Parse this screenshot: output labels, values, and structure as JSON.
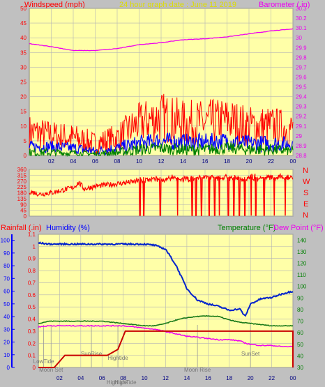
{
  "header": {
    "left_title": "Windspeed (mph)",
    "center_title": "24 hour graph date : June 11 2019",
    "right_title": "Barometer (.in)"
  },
  "colors": {
    "plot_bg": "#ffffa8",
    "frame_bg": "#c0c0c0",
    "grid": "#b4b4b4",
    "wind_gust": "#ff0000",
    "wind_avg": "#0000ff",
    "wind_low": "#008000",
    "barometer": "#ee00ee",
    "direction": "#ff0000",
    "humidity": "#0022cc",
    "temperature": "#1a7a1a",
    "dew_point": "#ee00ee",
    "rainfall": "#c80000",
    "title_yellow": "#dddd00",
    "left_red": "#ff0000",
    "left_blue": "#0000ff",
    "right_green": "#008000",
    "events": "#777777"
  },
  "direction_labels": [
    "N",
    "W",
    "S",
    "E",
    "N"
  ],
  "chart_data": [
    {
      "type": "line",
      "title": "24 hour graph date : June 11 2019",
      "x_ticks": [
        "02",
        "04",
        "06",
        "08",
        "10",
        "12",
        "14",
        "16",
        "18",
        "20",
        "22",
        "00"
      ],
      "ylabel": "Windspeed (mph)",
      "ylim": [
        0,
        50
      ],
      "y_ticks": [
        0,
        5,
        10,
        15,
        20,
        25,
        30,
        35,
        40,
        45,
        50
      ],
      "y2label": "Barometer (.in)",
      "y2lim": [
        28.8,
        30.3
      ],
      "y2_ticks": [
        "28.8",
        "28.9",
        "29",
        "29.1",
        "29.2",
        "29.3",
        "29.4",
        "29.5",
        "29.6",
        "29.7",
        "29.8",
        "29.9",
        "30",
        "30.1",
        "30.2",
        "30.3"
      ],
      "x": [
        0,
        2,
        4,
        6,
        8,
        10,
        12,
        14,
        16,
        18,
        20,
        22,
        24
      ],
      "series": [
        {
          "name": "Windspeed",
          "axis": "left",
          "style": "noisy",
          "values": [
            8,
            7,
            6,
            4,
            6,
            11,
            13,
            11,
            11,
            12,
            10,
            10,
            9
          ],
          "spread": [
            6,
            5,
            5,
            4,
            5,
            7,
            9,
            8,
            8,
            8,
            7,
            7,
            6
          ]
        },
        {
          "name": "Average",
          "axis": "left",
          "style": "noisy",
          "values": [
            3,
            3,
            2.5,
            1.5,
            2.5,
            4,
            5,
            4.5,
            4.5,
            5,
            4,
            4,
            4
          ],
          "spread": [
            2,
            2,
            2,
            1.5,
            2,
            3,
            3,
            3,
            3,
            3,
            3,
            3,
            2.5
          ]
        },
        {
          "name": "Low",
          "axis": "left",
          "style": "noisy",
          "values": [
            1,
            1,
            0.8,
            0.5,
            1,
            2,
            2.5,
            2,
            2,
            2.5,
            2,
            2,
            1.5
          ],
          "spread": [
            1.5,
            1.5,
            1.2,
            1,
            1.5,
            2,
            2,
            2,
            2,
            2,
            2,
            2,
            1.5
          ]
        },
        {
          "name": "Barometer",
          "axis": "right",
          "style": "smooth",
          "values": [
            29.94,
            29.91,
            29.87,
            29.87,
            29.89,
            29.93,
            29.95,
            29.98,
            29.99,
            30.01,
            30.04,
            30.07,
            30.09
          ]
        }
      ]
    },
    {
      "type": "line",
      "ylabel": "Wind direction",
      "ylim": [
        0,
        360
      ],
      "y_ticks": [
        0,
        45,
        90,
        135,
        180,
        225,
        270,
        315,
        360
      ],
      "x": [
        0,
        1,
        2,
        3,
        4,
        4.5,
        5,
        6,
        7,
        8,
        9,
        10,
        11,
        12,
        13,
        14,
        15,
        16,
        17,
        18,
        19,
        20,
        21,
        22,
        23,
        24
      ],
      "series": [
        {
          "name": "Direction",
          "values": [
            190,
            170,
            180,
            200,
            220,
            260,
            210,
            230,
            240,
            250,
            260,
            270,
            280,
            280,
            290,
            285,
            290,
            300,
            295,
            300,
            290,
            300,
            300,
            295,
            300,
            300
          ],
          "drops": [
            10.1,
            10.4,
            11.9,
            13.5,
            14.8,
            15.2,
            15.7,
            16.4,
            16.9,
            17.3,
            18.1,
            18.6,
            19.1,
            19.6,
            20.2,
            20.6,
            21.4,
            22.3,
            23.3
          ]
        }
      ]
    },
    {
      "type": "line",
      "x_ticks": [
        "02",
        "04",
        "06",
        "08",
        "10",
        "12",
        "14",
        "16",
        "18",
        "20",
        "22",
        "00"
      ],
      "ylabel": "Rainfall (.in)",
      "ylim": [
        0,
        1.1
      ],
      "y_ticks": [
        "0",
        "0.1",
        "0.2",
        "0.3",
        "0.4",
        "0.5",
        "0.6",
        "0.7",
        "0.8",
        "0.9",
        "1",
        "1.1"
      ],
      "y_left_outer_label": "Humidity (%)",
      "y_left_outer_lim": [
        0,
        100
      ],
      "y_left_outer_ticks": [
        0,
        10,
        20,
        30,
        40,
        50,
        60,
        70,
        80,
        90,
        100
      ],
      "y2label": "Temperature (°F)",
      "y3label": "Dew Point (°F)",
      "y2lim": [
        30,
        145
      ],
      "y2_ticks": [
        30,
        40,
        50,
        60,
        70,
        80,
        90,
        100,
        110,
        120,
        130,
        140
      ],
      "x": [
        0,
        1,
        2,
        3,
        4,
        5,
        6,
        7,
        8,
        9,
        10,
        11,
        12,
        13,
        14,
        15,
        16,
        17,
        18,
        19,
        19.5,
        20,
        21,
        22,
        23,
        24
      ],
      "series": [
        {
          "name": "Humidity",
          "axis": "left_outer",
          "values": [
            98,
            97,
            97,
            97,
            97,
            97,
            97,
            97,
            97,
            97,
            97,
            96,
            93,
            80,
            62,
            53,
            50,
            48,
            45,
            46,
            40,
            50,
            54,
            55,
            58,
            60
          ]
        },
        {
          "name": "Temperature",
          "axis": "right",
          "values": [
            68,
            70,
            70,
            70,
            70,
            70,
            70,
            69,
            68,
            67,
            66,
            66,
            68,
            71,
            73,
            74,
            74.5,
            74,
            71,
            69,
            68.5,
            68,
            67,
            66,
            66,
            66
          ]
        },
        {
          "name": "Dew Point",
          "axis": "right",
          "values": [
            65,
            66,
            66,
            66,
            66,
            66,
            66,
            66,
            66,
            65,
            64,
            63,
            61,
            59,
            57,
            56,
            55,
            54,
            54,
            53,
            51,
            50,
            49,
            49,
            48,
            48
          ]
        },
        {
          "name": "Rainfall",
          "axis": "left",
          "style": "step",
          "x": [
            0,
            1.5,
            2.5,
            6.5,
            7.5,
            8.2,
            24,
            24
          ],
          "values": [
            0,
            0,
            0.1,
            0.1,
            0.15,
            0.3,
            0.3,
            0
          ]
        }
      ],
      "annotations": [
        {
          "text": "LowTide",
          "x": 0.5,
          "row": "upper"
        },
        {
          "text": "Moon Set",
          "x": 1.2,
          "row": "lower"
        },
        {
          "text": "SunRise",
          "x": 5.0,
          "row": "upper"
        },
        {
          "text": "Hightide",
          "x": 7.5,
          "row": "mid"
        },
        {
          "text": "Moon Rise",
          "x": 15.0,
          "row": "lower"
        },
        {
          "text": "SunSet",
          "x": 20.0,
          "row": "upper"
        }
      ],
      "bottom_labels": [
        "Hightide",
        "HighTide"
      ]
    }
  ]
}
